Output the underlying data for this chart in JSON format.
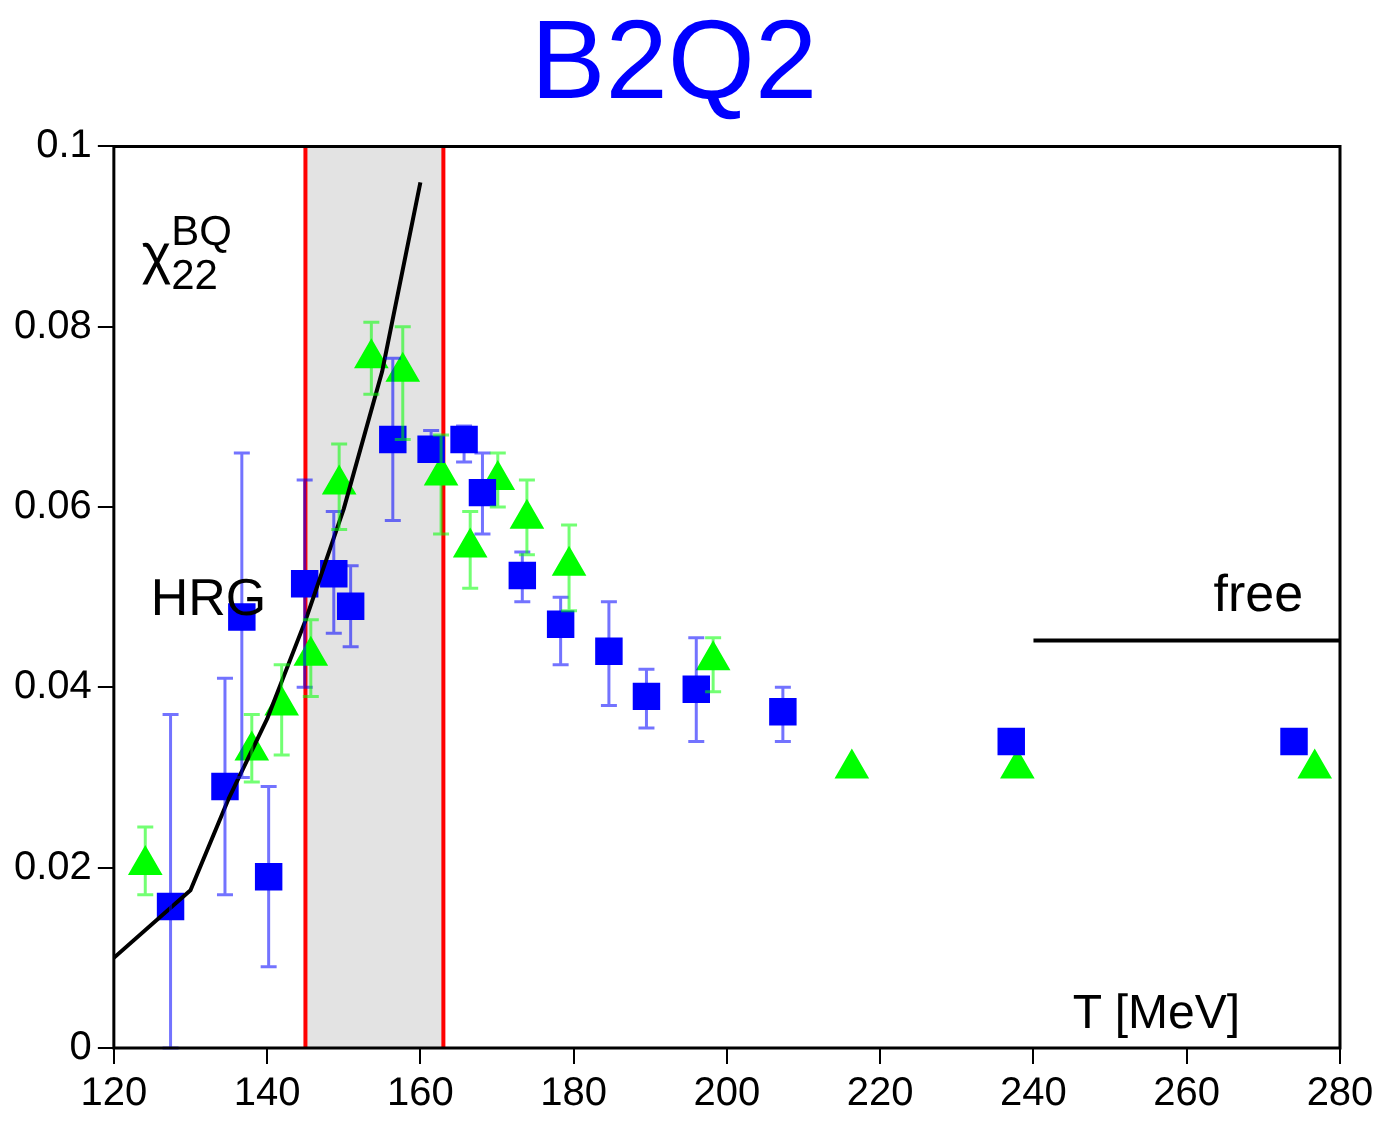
{
  "chart_data": {
    "type": "scatter",
    "title": "B2Q2",
    "xlabel": "T [MeV]",
    "annotations": [
      "χ$_{22}$$^{BQ}$",
      "HRG",
      "free"
    ],
    "xlim": [
      120,
      280
    ],
    "xticks": [
      120,
      140,
      160,
      180,
      200,
      220,
      240,
      260,
      280
    ],
    "ylim": [
      0,
      0.1
    ],
    "yticks": [
      0,
      0.02,
      0.04,
      0.06,
      0.08,
      0.1
    ],
    "grid": false,
    "legend": false,
    "bands": [
      {
        "axis": "x",
        "from": 145,
        "to": 163,
        "color": "#e3e3e3"
      }
    ],
    "ref_lines": [
      {
        "axis": "x",
        "value": 145,
        "color": "#ff0000"
      },
      {
        "axis": "x",
        "value": 163,
        "color": "#ff0000"
      }
    ],
    "series": [
      {
        "type": "line",
        "color": "#000000",
        "marker": "none",
        "line_style": "solid",
        "x": [
          120,
          130,
          135,
          140,
          145,
          150,
          155,
          160
        ],
        "values": [
          0.01,
          0.0175,
          0.0277,
          0.0365,
          0.0474,
          0.0598,
          0.075,
          0.096
        ]
      },
      {
        "type": "line",
        "color": "#000000",
        "marker": "none",
        "line_style": "solid",
        "x": [
          240,
          280
        ],
        "values": [
          0.0452,
          0.0452
        ]
      },
      {
        "color": "#0000ff",
        "marker": "square",
        "x": [
          127.4,
          134.5,
          136.7,
          140.2,
          144.9,
          148.7,
          150.9,
          156.4,
          161.4,
          165.7,
          168.1,
          173.3,
          178.3,
          184.6,
          189.5,
          196.0,
          207.3,
          237.1,
          274
        ],
        "values": [
          0.0157,
          0.029,
          0.0478,
          0.019,
          0.0515,
          0.0526,
          0.049,
          0.0675,
          0.0664,
          0.0675,
          0.0616,
          0.0524,
          0.047,
          0.044,
          0.039,
          0.0398,
          0.0373,
          0.034,
          0.034
        ],
        "errors": [
          [
            0,
            0.037
          ],
          [
            0.017,
            0.041
          ],
          [
            0.03,
            0.066
          ],
          [
            0.009,
            0.029
          ],
          [
            0.04,
            0.063
          ],
          [
            0.046,
            0.0595
          ],
          [
            0.0445,
            0.0535
          ],
          [
            0.0585,
            0.0765
          ],
          [
            0.0655,
            0.0685
          ],
          [
            0.065,
            0.069
          ],
          [
            0.057,
            0.066
          ],
          [
            0.0495,
            0.055
          ],
          [
            0.0425,
            0.05
          ],
          [
            0.038,
            0.0495
          ],
          [
            0.0355,
            0.042
          ],
          [
            0.034,
            0.0455
          ],
          [
            0.034,
            0.04
          ],
          null,
          null
        ]
      },
      {
        "color": "#00ff00",
        "marker": "triangle",
        "x": [
          124.1,
          138,
          141.9,
          145.7,
          149.4,
          153.6,
          157.7,
          162.7,
          166.5,
          170.1,
          173.9,
          179.4,
          198.2,
          216.3,
          237.9,
          276.7
        ],
        "values": [
          0.0203,
          0.033,
          0.038,
          0.0435,
          0.0625,
          0.0765,
          0.075,
          0.0635,
          0.0555,
          0.063,
          0.0587,
          0.0535,
          0.043,
          0.031,
          0.031,
          0.031
        ],
        "errors": [
          [
            0.017,
            0.0245
          ],
          [
            0.0295,
            0.037
          ],
          [
            0.0325,
            0.0425
          ],
          [
            0.039,
            0.0475
          ],
          [
            0.0575,
            0.067
          ],
          [
            0.0725,
            0.0805
          ],
          [
            0.0675,
            0.08
          ],
          [
            0.057,
            0.068
          ],
          [
            0.051,
            0.0595
          ],
          [
            0.06,
            0.066
          ],
          [
            0.0547,
            0.063
          ],
          [
            0.0485,
            0.058
          ],
          [
            0.0395,
            0.0455
          ],
          null,
          null,
          null
        ]
      }
    ]
  }
}
